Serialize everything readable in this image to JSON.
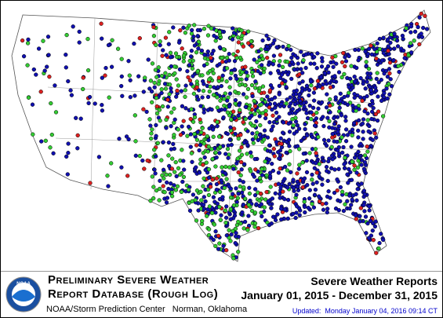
{
  "logo": {
    "text": "NOAA"
  },
  "header": {
    "title_line1": "Preliminary Severe Weather",
    "title_line2": "Report Database (Rough Log)",
    "credit": "NOAA/Storm Prediction Center   Norman, Oklahoma"
  },
  "summary": {
    "title": "Severe Weather Reports",
    "period": "January 01, 2015 - December 31, 2015",
    "updated": "Updated:  Monday January 04, 2016 09:14 CT"
  }
}
